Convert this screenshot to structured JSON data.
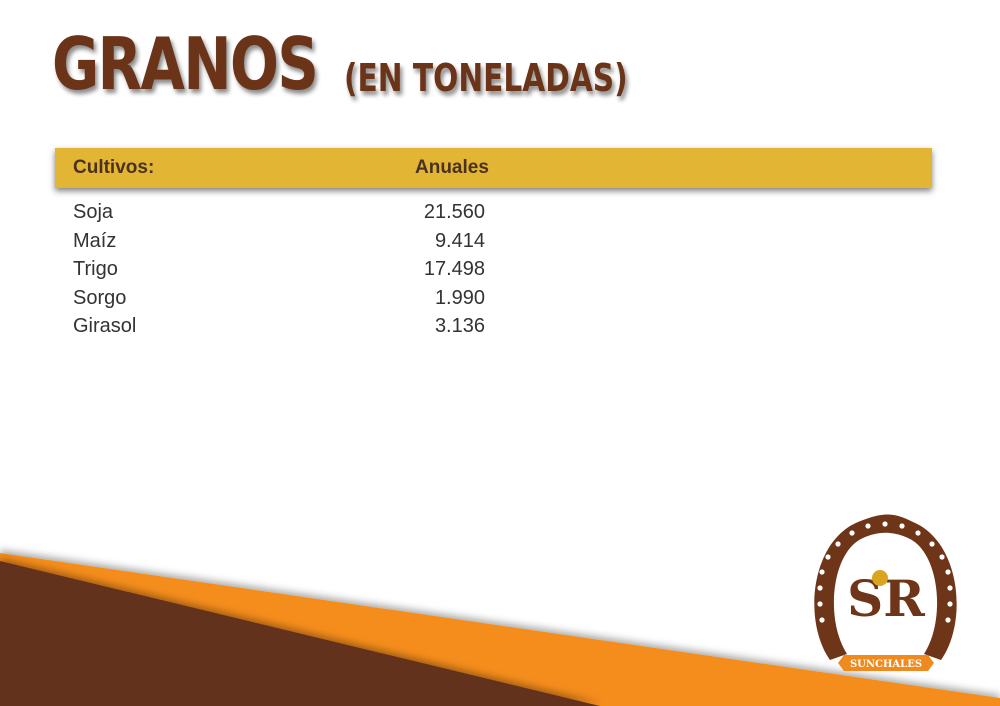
{
  "title": {
    "main": "GRANOS",
    "sub": "(EN TONELADAS)"
  },
  "table": {
    "headers": {
      "crop": "Cultivos:",
      "annual": "Anuales"
    },
    "rows": [
      {
        "crop": "Soja",
        "annual": "21.560"
      },
      {
        "crop": "Maíz",
        "annual": "9.414"
      },
      {
        "crop": "Trigo",
        "annual": "17.498"
      },
      {
        "crop": "Sorgo",
        "annual": "1.990"
      },
      {
        "crop": "Girasol",
        "annual": "3.136"
      }
    ]
  },
  "logo": {
    "text": "SUNCHALES",
    "monogram": "SR"
  },
  "colors": {
    "brown": "#63321a",
    "orange": "#f58d1b",
    "gold": "#e2b634"
  }
}
